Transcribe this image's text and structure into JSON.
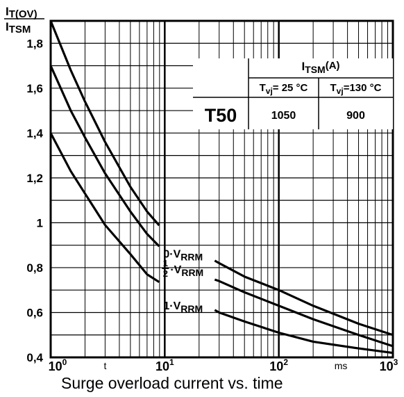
{
  "chart_data": {
    "type": "line",
    "x_scale": "log",
    "xlim": [
      1,
      1000
    ],
    "ylim": [
      0.4,
      1.9
    ],
    "grid": true,
    "y_axis_label": {
      "numerator": {
        "main": "I",
        "sub": "T(OV)"
      },
      "denominator": {
        "main": "I",
        "sub": "TSM"
      }
    },
    "y_ticks": [
      {
        "value": 0.4,
        "label": "0,4"
      },
      {
        "value": 0.6,
        "label": "0,6"
      },
      {
        "value": 0.8,
        "label": "0,8"
      },
      {
        "value": 1.0,
        "label": "1"
      },
      {
        "value": 1.2,
        "label": "1,2"
      },
      {
        "value": 1.4,
        "label": "1,4"
      },
      {
        "value": 1.6,
        "label": "1,6"
      },
      {
        "value": 1.8,
        "label": "1,8"
      }
    ],
    "x_ticks": [
      {
        "value": 1,
        "base": "10",
        "exp": "0"
      },
      {
        "value": 10,
        "base": "10",
        "exp": "1"
      },
      {
        "value": 100,
        "base": "10",
        "exp": "2"
      },
      {
        "value": 1000,
        "base": "10",
        "exp": "3"
      }
    ],
    "x_inline_labels": [
      {
        "value": 3,
        "text": "t"
      },
      {
        "value": 350,
        "text": "ms"
      }
    ],
    "series": [
      {
        "name": "0·VRRM",
        "label": {
          "coef": "0",
          "main": "·V",
          "sub": "RRM",
          "x": 10,
          "y": 0.86
        },
        "x": [
          1,
          1.5,
          2,
          3,
          5,
          7,
          10,
          15,
          20,
          30,
          50,
          100,
          200,
          500,
          1000
        ],
        "y": [
          1.9,
          1.68,
          1.54,
          1.36,
          1.16,
          1.05,
          0.96,
          0.9,
          0.87,
          0.82,
          0.76,
          0.7,
          0.63,
          0.55,
          0.5
        ]
      },
      {
        "name": "½·VRRM",
        "label": {
          "coef_num": "1",
          "coef_den": "2",
          "main": "·V",
          "sub": "RRM",
          "x": 10,
          "y": 0.79
        },
        "x": [
          1,
          1.5,
          2,
          3,
          5,
          7,
          10,
          15,
          20,
          30,
          50,
          100,
          200,
          500,
          1000
        ],
        "y": [
          1.7,
          1.5,
          1.38,
          1.22,
          1.05,
          0.95,
          0.87,
          0.8,
          0.77,
          0.74,
          0.69,
          0.63,
          0.57,
          0.5,
          0.45
        ]
      },
      {
        "name": "1·VRRM",
        "label": {
          "coef": "1",
          "main": "·V",
          "sub": "RRM",
          "x": 10,
          "y": 0.63
        },
        "x": [
          1,
          1.5,
          2,
          3,
          5,
          7,
          10,
          15,
          20,
          30,
          50,
          100,
          200,
          500,
          1000
        ],
        "y": [
          1.4,
          1.23,
          1.13,
          0.99,
          0.86,
          0.77,
          0.72,
          0.67,
          0.65,
          0.6,
          0.56,
          0.51,
          0.47,
          0.44,
          0.42
        ]
      }
    ],
    "inset_table": {
      "header_main": "I",
      "header_sub": "TSM",
      "header_unit": "(A)",
      "columns": [
        {
          "main": "T",
          "sub": "vj",
          "rest": "= 25 °C"
        },
        {
          "main": "T",
          "sub": "vj",
          "rest": "=130 °C"
        }
      ],
      "row_label": "T50",
      "values": [
        "1050",
        "900"
      ]
    },
    "caption": "Surge overload current vs. time"
  }
}
